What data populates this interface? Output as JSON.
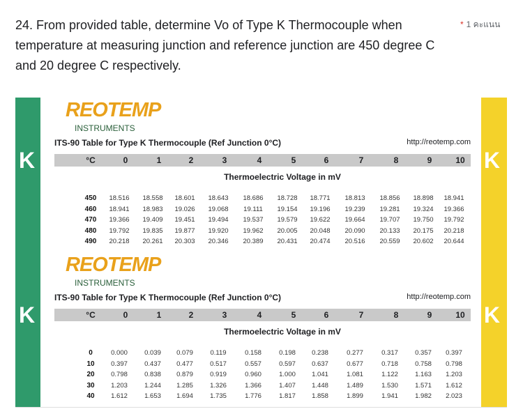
{
  "question": {
    "number": "24.",
    "text": "From provided table, determine Vo of Type K Thermocouple when temperature at measuring junction and reference junction are 450 degree C and 20 degree C respectively.",
    "required": "*",
    "points": "1 คะแนน"
  },
  "tables": [
    {
      "logo": "REOTEMP",
      "subtitle": "INSTRUMENTS",
      "title": "ITS-90 Table for Type K Thermocouple (Ref Junction 0°C)",
      "url": "http://reotemp.com",
      "side_label": "K",
      "header": [
        "°C",
        "0",
        "1",
        "2",
        "3",
        "4",
        "5",
        "6",
        "7",
        "8",
        "9",
        "10"
      ],
      "caption": "Thermoelectric Voltage in mV",
      "rows": [
        [
          "450",
          "18.516",
          "18.558",
          "18.601",
          "18.643",
          "18.686",
          "18.728",
          "18.771",
          "18.813",
          "18.856",
          "18.898",
          "18.941"
        ],
        [
          "460",
          "18.941",
          "18.983",
          "19.026",
          "19.068",
          "19.111",
          "19.154",
          "19.196",
          "19.239",
          "19.281",
          "19.324",
          "19.366"
        ],
        [
          "470",
          "19.366",
          "19.409",
          "19.451",
          "19.494",
          "19.537",
          "19.579",
          "19.622",
          "19.664",
          "19.707",
          "19.750",
          "19.792"
        ],
        [
          "480",
          "19.792",
          "19.835",
          "19.877",
          "19.920",
          "19.962",
          "20.005",
          "20.048",
          "20.090",
          "20.133",
          "20.175",
          "20.218"
        ],
        [
          "490",
          "20.218",
          "20.261",
          "20.303",
          "20.346",
          "20.389",
          "20.431",
          "20.474",
          "20.516",
          "20.559",
          "20.602",
          "20.644"
        ]
      ]
    },
    {
      "logo": "REOTEMP",
      "subtitle": "INSTRUMENTS",
      "title": "ITS-90 Table for Type K Thermocouple (Ref Junction 0°C)",
      "url": "http://reotemp.com",
      "side_label": "K",
      "header": [
        "°C",
        "0",
        "1",
        "2",
        "3",
        "4",
        "5",
        "6",
        "7",
        "8",
        "9",
        "10"
      ],
      "caption": "Thermoelectric Voltage in mV",
      "rows": [
        [
          "0",
          "0.000",
          "0.039",
          "0.079",
          "0.119",
          "0.158",
          "0.198",
          "0.238",
          "0.277",
          "0.317",
          "0.357",
          "0.397"
        ],
        [
          "10",
          "0.397",
          "0.437",
          "0.477",
          "0.517",
          "0.557",
          "0.597",
          "0.637",
          "0.677",
          "0.718",
          "0.758",
          "0.798"
        ],
        [
          "20",
          "0.798",
          "0.838",
          "0.879",
          "0.919",
          "0.960",
          "1.000",
          "1.041",
          "1.081",
          "1.122",
          "1.163",
          "1.203"
        ],
        [
          "30",
          "1.203",
          "1.244",
          "1.285",
          "1.326",
          "1.366",
          "1.407",
          "1.448",
          "1.489",
          "1.530",
          "1.571",
          "1.612"
        ],
        [
          "40",
          "1.612",
          "1.653",
          "1.694",
          "1.735",
          "1.776",
          "1.817",
          "1.858",
          "1.899",
          "1.941",
          "1.982",
          "2.023"
        ]
      ]
    }
  ]
}
